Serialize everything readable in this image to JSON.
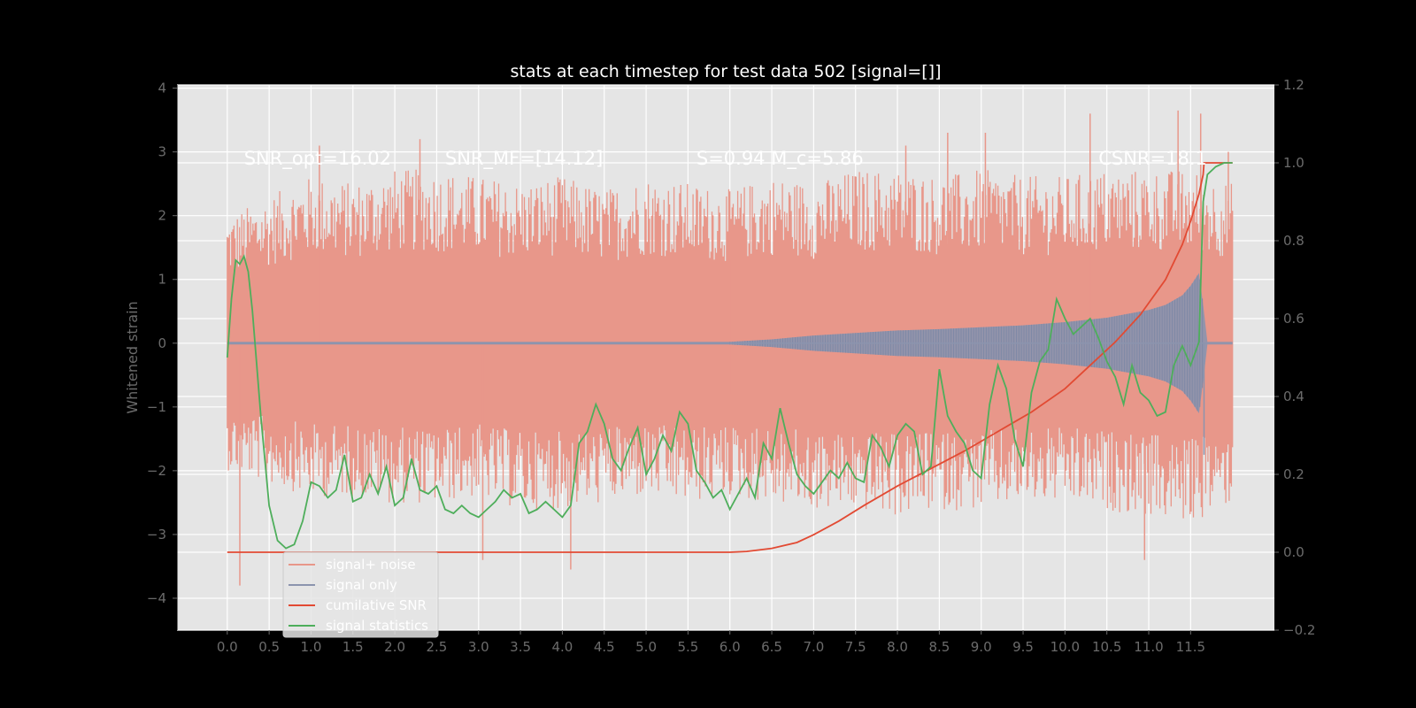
{
  "chart_data": {
    "type": "line",
    "title": "stats at each timestep for test data 502 [signal=[]]",
    "xlabel": "",
    "ylabel": "Whitened strain",
    "y2label": "",
    "xlim": [
      -0.6,
      12.5
    ],
    "ylim": [
      -4.5,
      4.05
    ],
    "y2lim": [
      -0.2,
      1.2
    ],
    "xticks": [
      0.0,
      0.5,
      1.0,
      1.5,
      2.0,
      2.5,
      3.0,
      3.5,
      4.0,
      4.5,
      5.0,
      5.5,
      6.0,
      6.5,
      7.0,
      7.5,
      8.0,
      8.5,
      9.0,
      9.5,
      10.0,
      10.5,
      11.0,
      11.5
    ],
    "xtick_labels": [
      "0.0",
      "0.5",
      "1.0",
      "1.5",
      "2.0",
      "2.5",
      "3.0",
      "3.5",
      "4.0",
      "4.5",
      "5.0",
      "5.5",
      "6.0",
      "6.5",
      "7.0",
      "7.5",
      "8.0",
      "8.5",
      "9.0",
      "9.5",
      "10.0",
      "10.5",
      "11.0",
      "11.5"
    ],
    "yticks": [
      4,
      3,
      2,
      1,
      0,
      -1,
      -2,
      -3,
      -4
    ],
    "ytick_labels": [
      "4",
      "3",
      "2",
      "1",
      "0",
      "−1",
      "−2",
      "−3",
      "−4"
    ],
    "y2ticks": [
      1.2,
      1.0,
      0.8,
      0.6,
      0.4,
      0.2,
      0.0,
      -0.2
    ],
    "y2tick_labels": [
      "1.2",
      "1.0",
      "0.8",
      "0.6",
      "0.4",
      "0.2",
      "0.0",
      "−0.2"
    ],
    "grid": true,
    "legend_position": "lower-left",
    "annotations": [
      {
        "text": "SNR_opt=16.02",
        "x": 0.2,
        "y": 2.9
      },
      {
        "text": "SNR_MF=[14.12]",
        "x": 2.6,
        "y": 2.9
      },
      {
        "text": "S=0.94   M_c=5.86",
        "x": 5.6,
        "y": 2.9
      },
      {
        "text": "CSNR=18.1",
        "x": 10.4,
        "y": 2.9
      }
    ],
    "series": [
      {
        "name": "signal+ noise",
        "axis": "left",
        "color": "#E8978A",
        "envelope": {
          "x": [
            0.0,
            0.5,
            1.0,
            1.5,
            2.0,
            2.5,
            3.0,
            3.5,
            4.0,
            4.5,
            5.0,
            5.5,
            6.0,
            6.5,
            7.0,
            7.5,
            8.0,
            8.5,
            9.0,
            9.5,
            10.0,
            10.5,
            11.0,
            11.5,
            12.0
          ],
          "upper": [
            1.9,
            2.2,
            2.5,
            2.4,
            2.6,
            2.6,
            2.5,
            2.4,
            2.5,
            2.3,
            2.5,
            2.4,
            2.3,
            2.5,
            2.4,
            2.6,
            2.6,
            2.5,
            2.6,
            2.5,
            2.5,
            2.6,
            2.6,
            2.6,
            2.4
          ],
          "lower": [
            -1.9,
            -2.1,
            -2.3,
            -2.3,
            -2.4,
            -2.4,
            -2.3,
            -2.5,
            -2.5,
            -2.4,
            -2.3,
            -2.4,
            -2.3,
            -2.4,
            -2.5,
            -2.5,
            -2.6,
            -2.5,
            -2.5,
            -2.4,
            -2.4,
            -2.5,
            -2.6,
            -2.7,
            -2.4
          ]
        },
        "spikes": [
          {
            "x": 0.15,
            "y": -3.8
          },
          {
            "x": 1.65,
            "y": -0.8
          },
          {
            "x": 2.3,
            "y": 3.2
          },
          {
            "x": 3.05,
            "y": -3.4
          },
          {
            "x": 4.1,
            "y": -3.55
          },
          {
            "x": 6.0,
            "y": 1.3
          },
          {
            "x": 6.0,
            "y": -0.8
          },
          {
            "x": 8.1,
            "y": 3.1
          },
          {
            "x": 8.6,
            "y": 3.3
          },
          {
            "x": 9.05,
            "y": 3.3
          },
          {
            "x": 10.3,
            "y": 3.6
          },
          {
            "x": 10.95,
            "y": -3.4
          },
          {
            "x": 11.35,
            "y": 3.65
          },
          {
            "x": 11.62,
            "y": 3.6
          },
          {
            "x": 11.95,
            "y": 3.0
          },
          {
            "x": 1.1,
            "y": 3.1
          }
        ]
      },
      {
        "name": "signal only",
        "axis": "left",
        "color": "#8B94AE",
        "envelope": {
          "x": [
            0.0,
            6.0,
            6.5,
            7.0,
            7.5,
            8.0,
            8.5,
            9.0,
            9.5,
            10.0,
            10.5,
            11.0,
            11.2,
            11.4,
            11.5,
            11.6,
            11.65,
            11.7,
            12.0
          ],
          "amplitude": [
            0.02,
            0.02,
            0.06,
            0.12,
            0.16,
            0.2,
            0.22,
            0.25,
            0.28,
            0.33,
            0.4,
            0.52,
            0.6,
            0.75,
            0.9,
            1.1,
            0.6,
            0.02,
            0.02
          ]
        },
        "spikes": [
          {
            "x": 11.66,
            "y": -1.75
          }
        ]
      },
      {
        "name": "cumilative SNR",
        "axis": "right",
        "color": "#E24A33",
        "x": [
          0.0,
          5.8,
          6.0,
          6.2,
          6.5,
          6.8,
          7.0,
          7.3,
          7.6,
          8.0,
          8.4,
          8.8,
          9.2,
          9.6,
          10.0,
          10.3,
          10.6,
          10.9,
          11.2,
          11.4,
          11.5,
          11.6,
          11.65,
          11.66,
          12.0
        ],
        "values": [
          0.0,
          0.0,
          0.0,
          0.002,
          0.01,
          0.025,
          0.045,
          0.08,
          0.12,
          0.17,
          0.215,
          0.26,
          0.31,
          0.36,
          0.42,
          0.48,
          0.54,
          0.61,
          0.7,
          0.79,
          0.85,
          0.92,
          0.97,
          1.0,
          1.0
        ]
      },
      {
        "name": "signal statistics",
        "axis": "right",
        "color": "#4EAE5B",
        "x": [
          0.0,
          0.05,
          0.1,
          0.15,
          0.2,
          0.25,
          0.3,
          0.4,
          0.5,
          0.6,
          0.7,
          0.8,
          0.9,
          1.0,
          1.1,
          1.2,
          1.3,
          1.4,
          1.5,
          1.6,
          1.7,
          1.8,
          1.9,
          2.0,
          2.1,
          2.2,
          2.3,
          2.4,
          2.5,
          2.6,
          2.7,
          2.8,
          2.9,
          3.0,
          3.1,
          3.2,
          3.3,
          3.4,
          3.5,
          3.6,
          3.7,
          3.8,
          3.9,
          4.0,
          4.1,
          4.2,
          4.3,
          4.4,
          4.5,
          4.6,
          4.7,
          4.8,
          4.9,
          5.0,
          5.1,
          5.2,
          5.3,
          5.4,
          5.5,
          5.6,
          5.7,
          5.8,
          5.9,
          6.0,
          6.1,
          6.2,
          6.3,
          6.4,
          6.5,
          6.6,
          6.7,
          6.8,
          6.9,
          7.0,
          7.1,
          7.2,
          7.3,
          7.4,
          7.5,
          7.6,
          7.7,
          7.8,
          7.9,
          8.0,
          8.1,
          8.2,
          8.3,
          8.4,
          8.5,
          8.6,
          8.7,
          8.8,
          8.9,
          9.0,
          9.1,
          9.2,
          9.3,
          9.4,
          9.5,
          9.6,
          9.7,
          9.8,
          9.9,
          10.0,
          10.1,
          10.2,
          10.3,
          10.4,
          10.5,
          10.6,
          10.7,
          10.8,
          10.9,
          11.0,
          11.1,
          11.2,
          11.3,
          11.4,
          11.5,
          11.6,
          11.65,
          11.7,
          11.8,
          11.9,
          12.0
        ],
        "values": [
          0.5,
          0.65,
          0.75,
          0.74,
          0.76,
          0.72,
          0.62,
          0.35,
          0.12,
          0.03,
          0.01,
          0.02,
          0.08,
          0.18,
          0.17,
          0.14,
          0.16,
          0.25,
          0.13,
          0.14,
          0.2,
          0.15,
          0.22,
          0.12,
          0.14,
          0.24,
          0.16,
          0.15,
          0.17,
          0.11,
          0.1,
          0.12,
          0.1,
          0.09,
          0.11,
          0.13,
          0.16,
          0.14,
          0.15,
          0.1,
          0.11,
          0.13,
          0.11,
          0.09,
          0.12,
          0.28,
          0.31,
          0.38,
          0.33,
          0.24,
          0.21,
          0.27,
          0.32,
          0.2,
          0.24,
          0.3,
          0.26,
          0.36,
          0.33,
          0.21,
          0.18,
          0.14,
          0.16,
          0.11,
          0.15,
          0.19,
          0.14,
          0.28,
          0.24,
          0.37,
          0.28,
          0.2,
          0.17,
          0.15,
          0.18,
          0.21,
          0.19,
          0.23,
          0.19,
          0.18,
          0.3,
          0.27,
          0.22,
          0.3,
          0.33,
          0.31,
          0.2,
          0.22,
          0.47,
          0.35,
          0.31,
          0.28,
          0.21,
          0.19,
          0.38,
          0.48,
          0.42,
          0.29,
          0.22,
          0.41,
          0.49,
          0.52,
          0.65,
          0.6,
          0.56,
          0.58,
          0.6,
          0.55,
          0.49,
          0.45,
          0.38,
          0.48,
          0.41,
          0.39,
          0.35,
          0.36,
          0.48,
          0.53,
          0.48,
          0.54,
          0.9,
          0.97,
          0.99,
          1.0,
          1.0
        ]
      }
    ]
  }
}
